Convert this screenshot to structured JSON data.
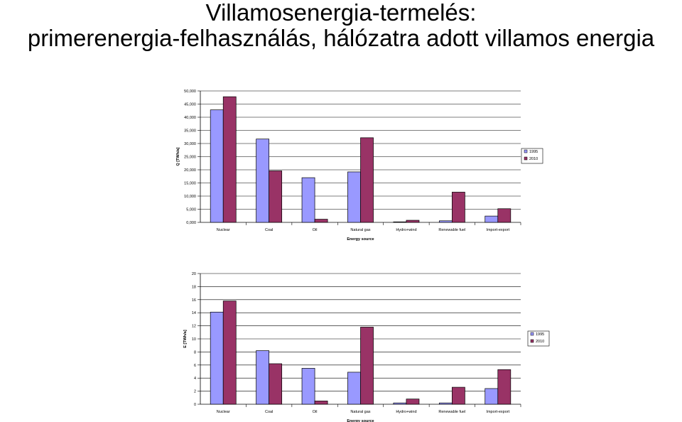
{
  "title": {
    "line1": "Villamosenergia-termelés:",
    "line2": "primerenergia-felhasználás, hálózatra adott villamos energia"
  },
  "colors": {
    "series_1995": "#9999ff",
    "series_2010": "#993366",
    "axis": "#000000",
    "grid": "#000000"
  },
  "chart_data": [
    {
      "type": "bar",
      "ylabel": "Q [TWh/a]",
      "xlabel": "Energy source",
      "ylim": [
        0,
        50
      ],
      "yticks": [
        "0,000",
        "5,000",
        "10,000",
        "15,000",
        "20,000",
        "25,000",
        "30,000",
        "35,000",
        "40,000",
        "45,000",
        "50,000"
      ],
      "grid": true,
      "legend_position": "right",
      "categories": [
        "Nuclear",
        "Coal",
        "Oil",
        "Natural gas",
        "Hydro+wind",
        "Renewable fuel",
        "Import-export"
      ],
      "series": [
        {
          "name": "1995",
          "values": [
            42.8,
            31.7,
            17.0,
            19.2,
            0.2,
            0.6,
            2.4
          ]
        },
        {
          "name": "2010",
          "values": [
            47.8,
            19.6,
            1.2,
            32.2,
            0.8,
            11.5,
            5.2
          ]
        }
      ]
    },
    {
      "type": "bar",
      "ylabel": "E [TWh/a]",
      "xlabel": "Energy source",
      "ylim": [
        0,
        20
      ],
      "yticks": [
        "0",
        "2",
        "4",
        "6",
        "8",
        "10",
        "12",
        "14",
        "16",
        "18",
        "20"
      ],
      "grid": true,
      "legend_position": "right",
      "categories": [
        "Nuclear",
        "Coal",
        "Oil",
        "Natural gas",
        "Hydro+wind",
        "Renewable fuel",
        "Import-export"
      ],
      "series": [
        {
          "name": "1995",
          "values": [
            14.1,
            8.2,
            5.5,
            4.9,
            0.2,
            0.2,
            2.4
          ]
        },
        {
          "name": "2010",
          "values": [
            15.8,
            6.2,
            0.5,
            11.8,
            0.8,
            2.6,
            5.3
          ]
        }
      ]
    }
  ]
}
